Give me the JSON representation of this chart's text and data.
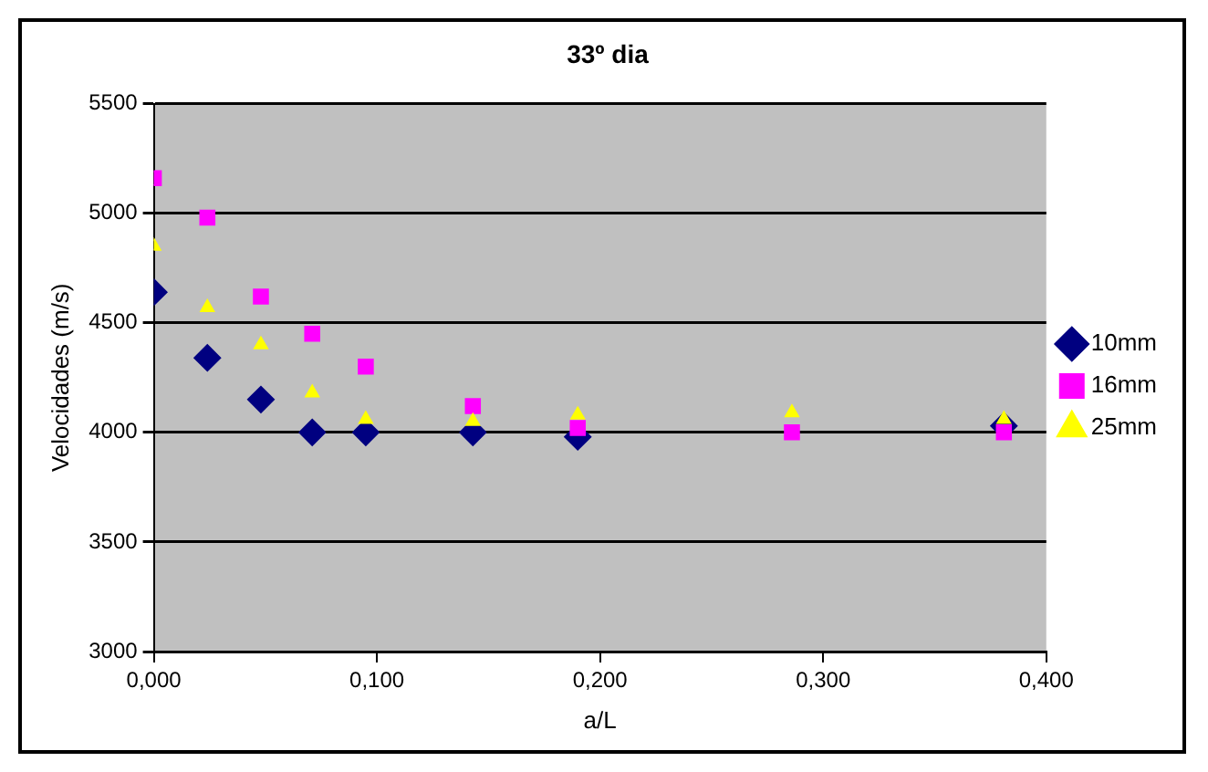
{
  "chart_data": {
    "type": "scatter",
    "title": "33º dia",
    "xlabel": "a/L",
    "ylabel": "Velocidades (m/s)",
    "x": [
      0,
      0.024,
      0.048,
      0.071,
      0.095,
      0.143,
      0.19,
      0.286,
      0.381
    ],
    "xlim": [
      0,
      0.4
    ],
    "xticks": [
      {
        "value": 0,
        "label": "0,000"
      },
      {
        "value": 0.1,
        "label": "0,100"
      },
      {
        "value": 0.2,
        "label": "0,200"
      },
      {
        "value": 0.3,
        "label": "0,300"
      },
      {
        "value": 0.4,
        "label": "0,400"
      }
    ],
    "ylim": [
      3000,
      5500
    ],
    "yticks": [
      3000,
      3500,
      4000,
      4500,
      5000,
      5500
    ],
    "grid": "y",
    "legend": "right",
    "series": [
      {
        "name": "10mm",
        "color": "#000080",
        "marker": "diamond",
        "values": [
          4640,
          4340,
          4150,
          4000,
          4000,
          4000,
          3980,
          null,
          4030
        ]
      },
      {
        "name": "16mm",
        "color": "#ff00ff",
        "marker": "square",
        "values": [
          5160,
          4980,
          4620,
          4450,
          4300,
          4120,
          4020,
          4000,
          4000
        ]
      },
      {
        "name": "25mm",
        "color": "#ffff00",
        "marker": "triangle",
        "values": [
          4850,
          4570,
          4400,
          4180,
          4060,
          4050,
          4080,
          4090,
          4060
        ]
      }
    ]
  }
}
